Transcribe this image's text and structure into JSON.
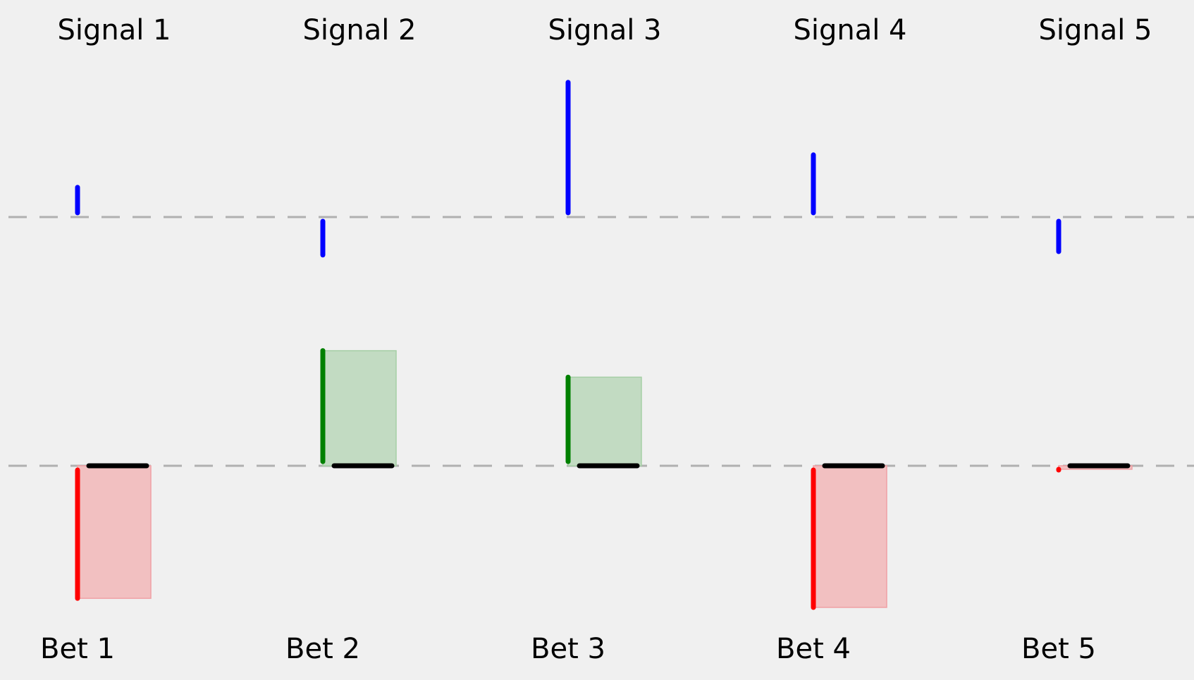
{
  "chart_data": {
    "type": "bar",
    "categories": [
      "1",
      "2",
      "3",
      "4",
      "5"
    ],
    "signal_labels": [
      "Signal 1",
      "Signal 2",
      "Signal 3",
      "Signal 4",
      "Signal 5"
    ],
    "bet_labels": [
      "Bet 1",
      "Bet 2",
      "Bet 3",
      "Bet 4",
      "Bet 5"
    ],
    "series": [
      {
        "values": [
          0.43,
          -0.55,
          1.95,
          0.9,
          -0.5
        ]
      },
      {
        "values": [
          -1.9,
          1.65,
          1.27,
          -2.03,
          -0.05
        ]
      }
    ],
    "signal_ylim": [
      -1,
      2
    ],
    "bet_ylim": [
      -2.5,
      2
    ],
    "baseline_style": "dashed",
    "grid": false,
    "legend": "none",
    "colors": {
      "background": "#f0f0f0",
      "signal": "#0000ff",
      "win": "#008000",
      "win_fill": "#c2dbc2",
      "loss": "#ff0000",
      "loss_fill": "#f2c0c1",
      "baseline": "#b0b0b0",
      "marker": "#000000"
    }
  }
}
